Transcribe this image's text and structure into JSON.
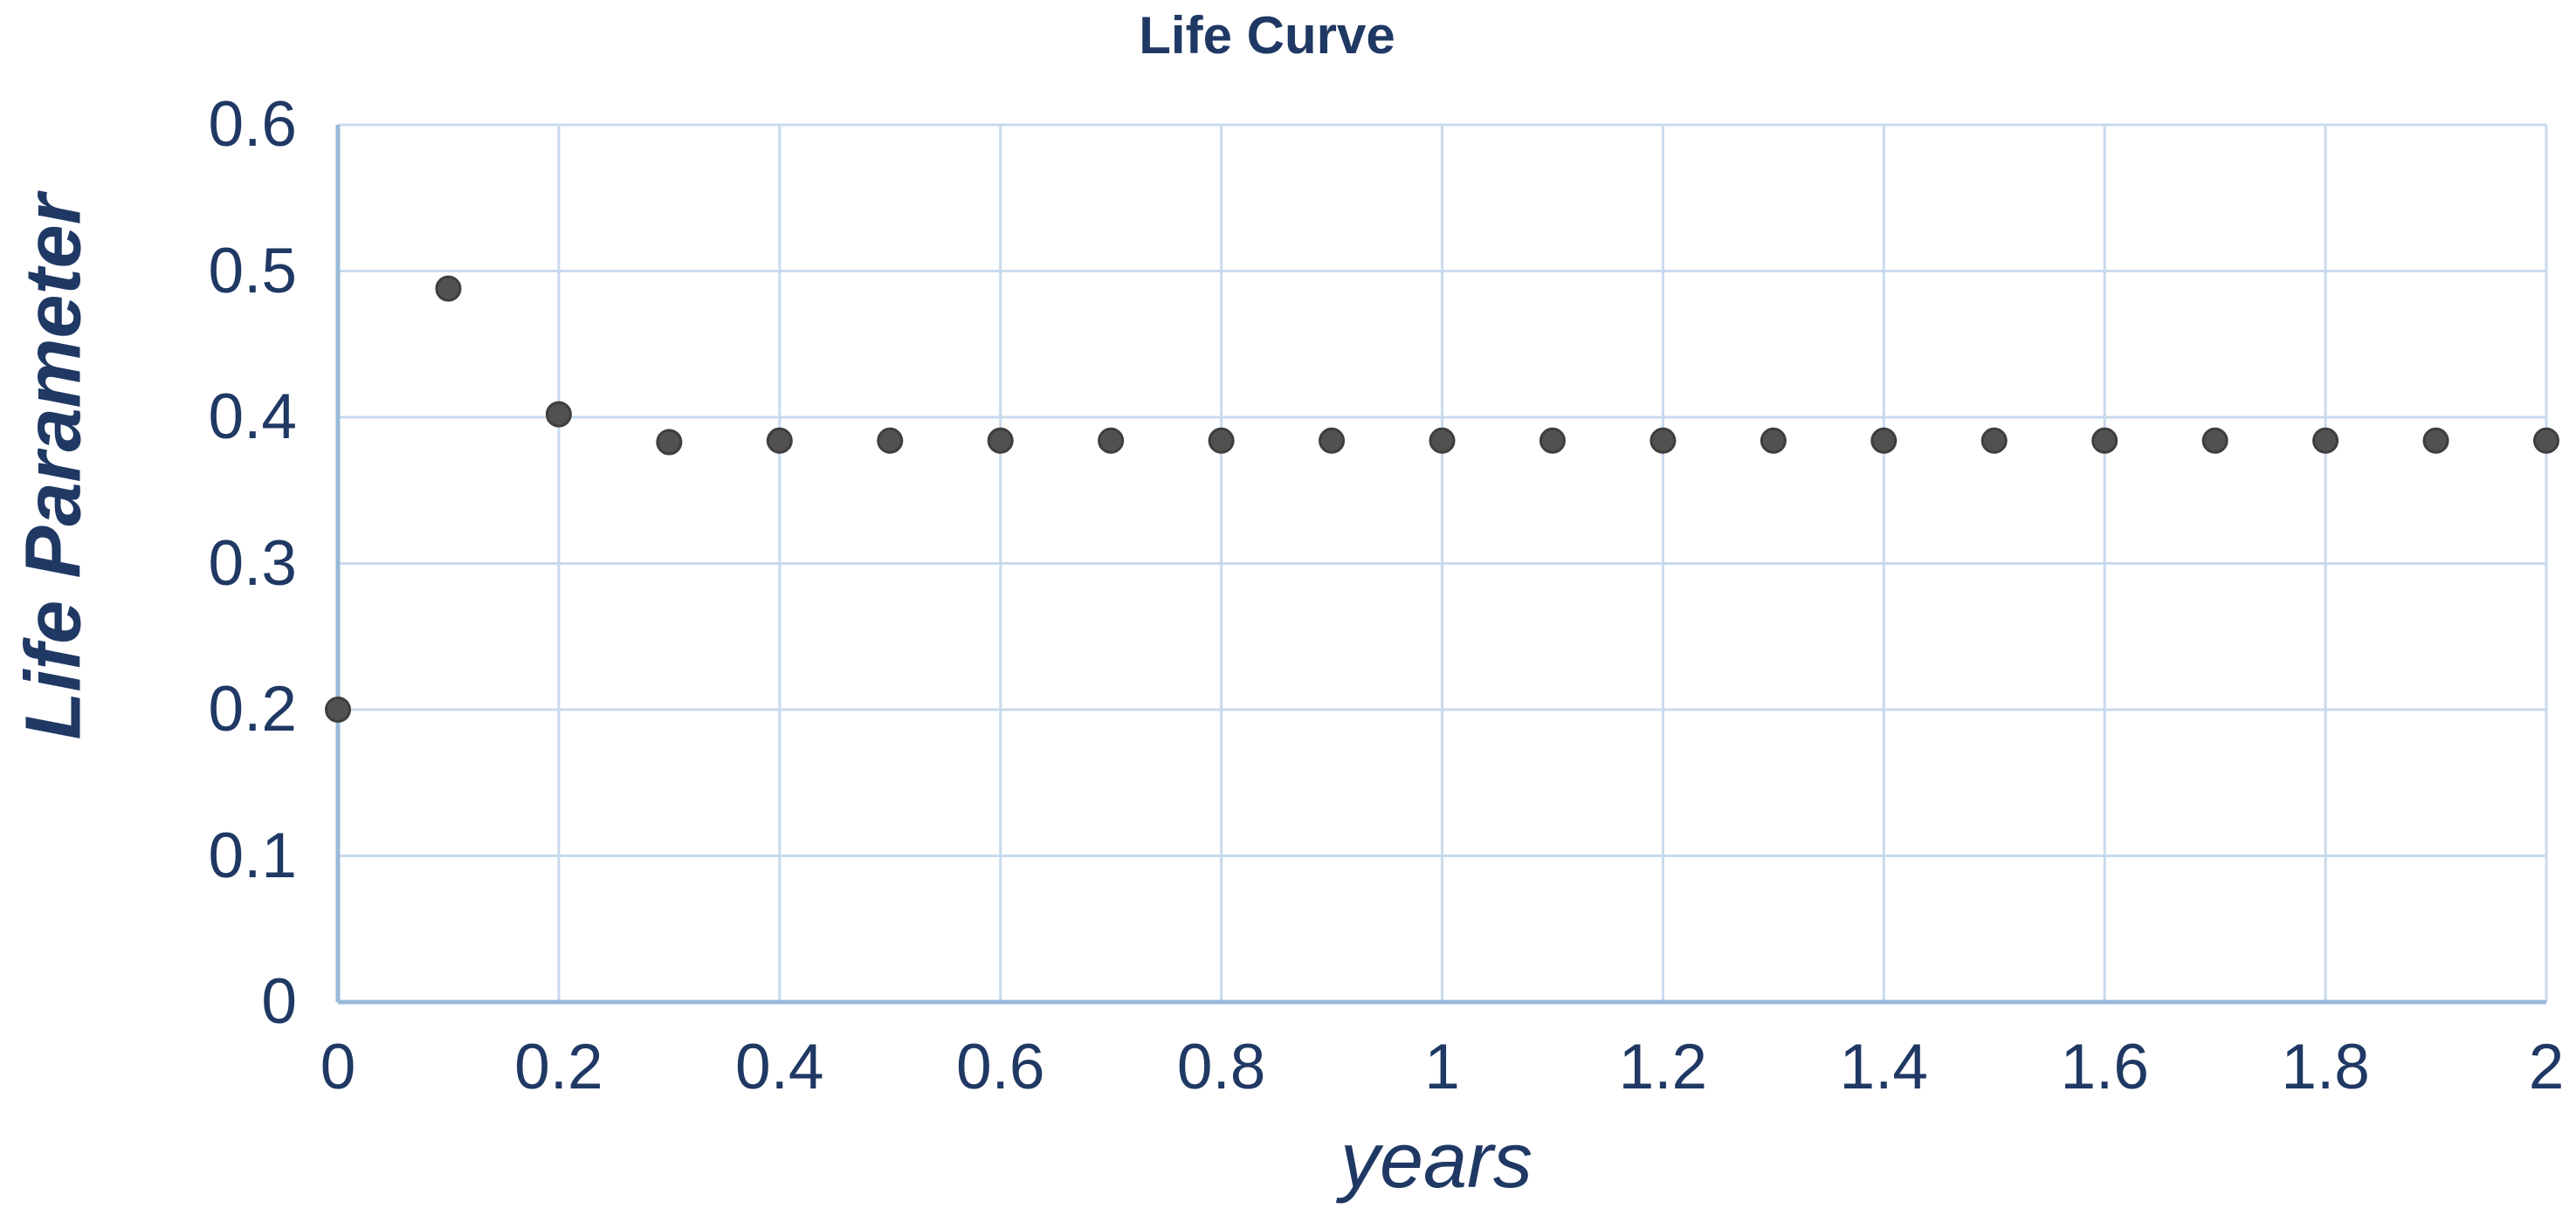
{
  "page": {
    "background_color": "#ffffff"
  },
  "chart_data": {
    "type": "scatter",
    "title": "Life Curve",
    "xlabel": "years",
    "ylabel": "Life Parameter",
    "x": [
      0,
      0.1,
      0.2,
      0.3,
      0.4,
      0.5,
      0.6,
      0.7,
      0.8,
      0.9,
      1,
      1.1,
      1.2,
      1.3,
      1.4,
      1.5,
      1.6,
      1.7,
      1.8,
      1.9,
      2
    ],
    "y": [
      0.2,
      0.488,
      0.402,
      0.383,
      0.384,
      0.384,
      0.384,
      0.384,
      0.384,
      0.384,
      0.384,
      0.384,
      0.384,
      0.384,
      0.384,
      0.384,
      0.384,
      0.384,
      0.384,
      0.384,
      0.384
    ],
    "xlim": [
      0,
      2
    ],
    "ylim": [
      0,
      0.6
    ],
    "x_ticks": [
      0,
      0.2,
      0.4,
      0.6,
      0.8,
      1,
      1.2,
      1.4,
      1.6,
      1.8,
      2
    ],
    "x_tick_labels": [
      "0",
      "0.2",
      "0.4",
      "0.6",
      "0.8",
      "1",
      "1.2",
      "1.4",
      "1.6",
      "1.8",
      "2"
    ],
    "y_ticks": [
      0,
      0.1,
      0.2,
      0.3,
      0.4,
      0.5,
      0.6
    ],
    "y_tick_labels": [
      "0",
      "0.1",
      "0.2",
      "0.3",
      "0.4",
      "0.5",
      "0.6"
    ],
    "grid": true,
    "legend": false,
    "marker": "circle",
    "colors": {
      "text": "#1F3864",
      "gridline": "#C8DAED",
      "axis_line": "#98B9D9",
      "point_fill": "#515151",
      "point_edge": "#3E3E3E",
      "background": "#FFFFFF"
    }
  }
}
